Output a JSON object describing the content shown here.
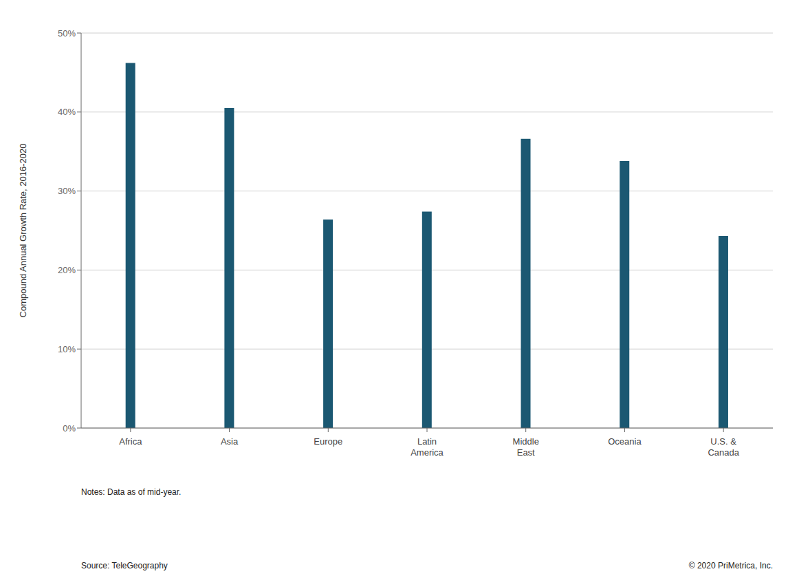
{
  "chart_data": {
    "type": "bar",
    "categories": [
      "Africa",
      "Asia",
      "Europe",
      "Latin\nAmerica",
      "Middle\nEast",
      "Oceania",
      "U.S. &\nCanada"
    ],
    "values": [
      0.462,
      0.405,
      0.264,
      0.274,
      0.366,
      0.338,
      0.243
    ],
    "color": "#1b5872",
    "ylabel": "Compound Annual Growth Rate, 2016-2020",
    "ylim": [
      0,
      0.5
    ],
    "yticks": [
      {
        "value": 0.0,
        "label": "0%"
      },
      {
        "value": 0.1,
        "label": "10%"
      },
      {
        "value": 0.2,
        "label": "20%"
      },
      {
        "value": 0.3,
        "label": "30%"
      },
      {
        "value": 0.4,
        "label": "40%"
      },
      {
        "value": 0.5,
        "label": "50%"
      }
    ],
    "grid": true,
    "annotations": [
      "Notes: Data as of mid-year.",
      "Source: TeleGeography",
      "© 2020 PriMetrica, Inc."
    ]
  }
}
